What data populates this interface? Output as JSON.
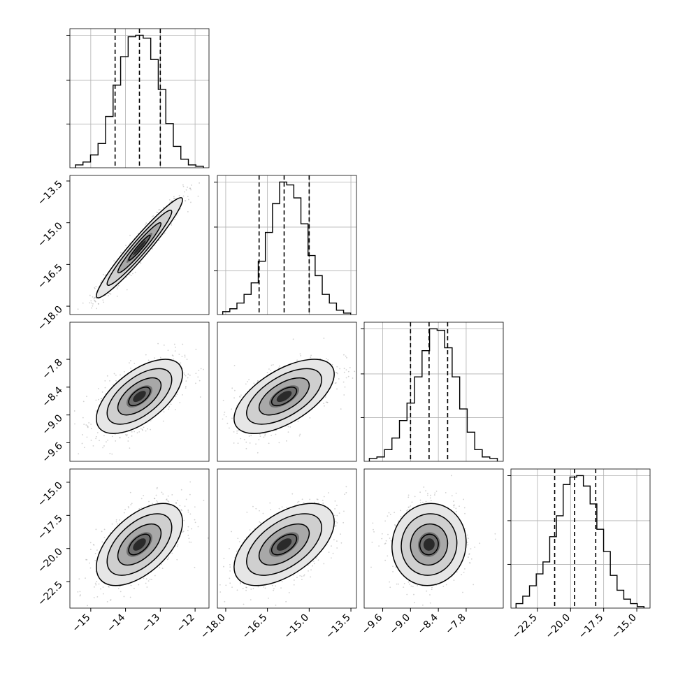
{
  "chart_data": {
    "type": "corner",
    "params": [
      {
        "median": -13.6,
        "q16": -14.3,
        "q84": -13.0,
        "range": [
          -15.6,
          -11.6
        ],
        "ticks": [
          "−15",
          "−14",
          "−13",
          "−12"
        ],
        "tick_values": [
          -15,
          -14,
          -13,
          -12
        ]
      },
      {
        "median": -15.9,
        "q16": -16.8,
        "q84": -15.0,
        "range": [
          -18.3,
          -13.3
        ],
        "ticks": [
          "−18.0",
          "−16.5",
          "−15.0",
          "−13.5"
        ],
        "tick_values": [
          -18.0,
          -16.5,
          -15.0,
          -13.5
        ]
      },
      {
        "median": -8.6,
        "q16": -9.0,
        "q84": -8.2,
        "range": [
          -10.0,
          -7.0
        ],
        "ticks": [
          "−9.6",
          "−9.0",
          "−8.4",
          "−7.8"
        ],
        "tick_values": [
          -9.6,
          -9.0,
          -8.4,
          -7.8
        ]
      },
      {
        "median": -19.7,
        "q16": -21.2,
        "q84": -18.1,
        "range": [
          -24.5,
          -14.0
        ],
        "ticks": [
          "−22.5",
          "−20.0",
          "−17.5",
          "−15.0"
        ],
        "tick_values": [
          -22.5,
          -20.0,
          -17.5,
          -15.0
        ]
      }
    ],
    "histograms": [
      [
        2,
        4,
        9,
        17,
        36,
        58,
        78,
        92,
        93,
        91,
        76,
        55,
        31,
        15,
        6,
        2,
        1
      ],
      [
        2,
        4,
        8,
        14,
        22,
        37,
        57,
        77,
        92,
        90,
        81,
        63,
        41,
        27,
        14,
        8,
        3,
        1
      ],
      [
        2,
        3,
        8,
        16,
        28,
        40,
        58,
        76,
        91,
        90,
        78,
        58,
        36,
        20,
        8,
        3,
        2
      ],
      [
        3,
        8,
        15,
        23,
        31,
        48,
        62,
        83,
        88,
        89,
        82,
        70,
        53,
        38,
        22,
        12,
        6,
        3,
        1
      ]
    ],
    "pairs": [
      {
        "x": 0,
        "y": 1,
        "corr": 0.96,
        "sx": 0.62,
        "sy": 0.9
      },
      {
        "x": 0,
        "y": 2,
        "corr": 0.6,
        "sx": 0.62,
        "sy": 0.4
      },
      {
        "x": 1,
        "y": 2,
        "corr": 0.6,
        "sx": 0.9,
        "sy": 0.4
      },
      {
        "x": 0,
        "y": 3,
        "corr": 0.55,
        "sx": 0.62,
        "sy": 1.55
      },
      {
        "x": 1,
        "y": 3,
        "corr": 0.55,
        "sx": 0.9,
        "sy": 1.55
      },
      {
        "x": 2,
        "y": 3,
        "corr": 0.05,
        "sx": 0.4,
        "sy": 1.55
      }
    ],
    "contour_levels": [
      0.5,
      1.0,
      1.5,
      2.0
    ],
    "grid": true,
    "colors": {
      "line": "#000000",
      "grid": "#b0b0b0",
      "points": "#7a7a7a",
      "background": "#ffffff"
    }
  }
}
